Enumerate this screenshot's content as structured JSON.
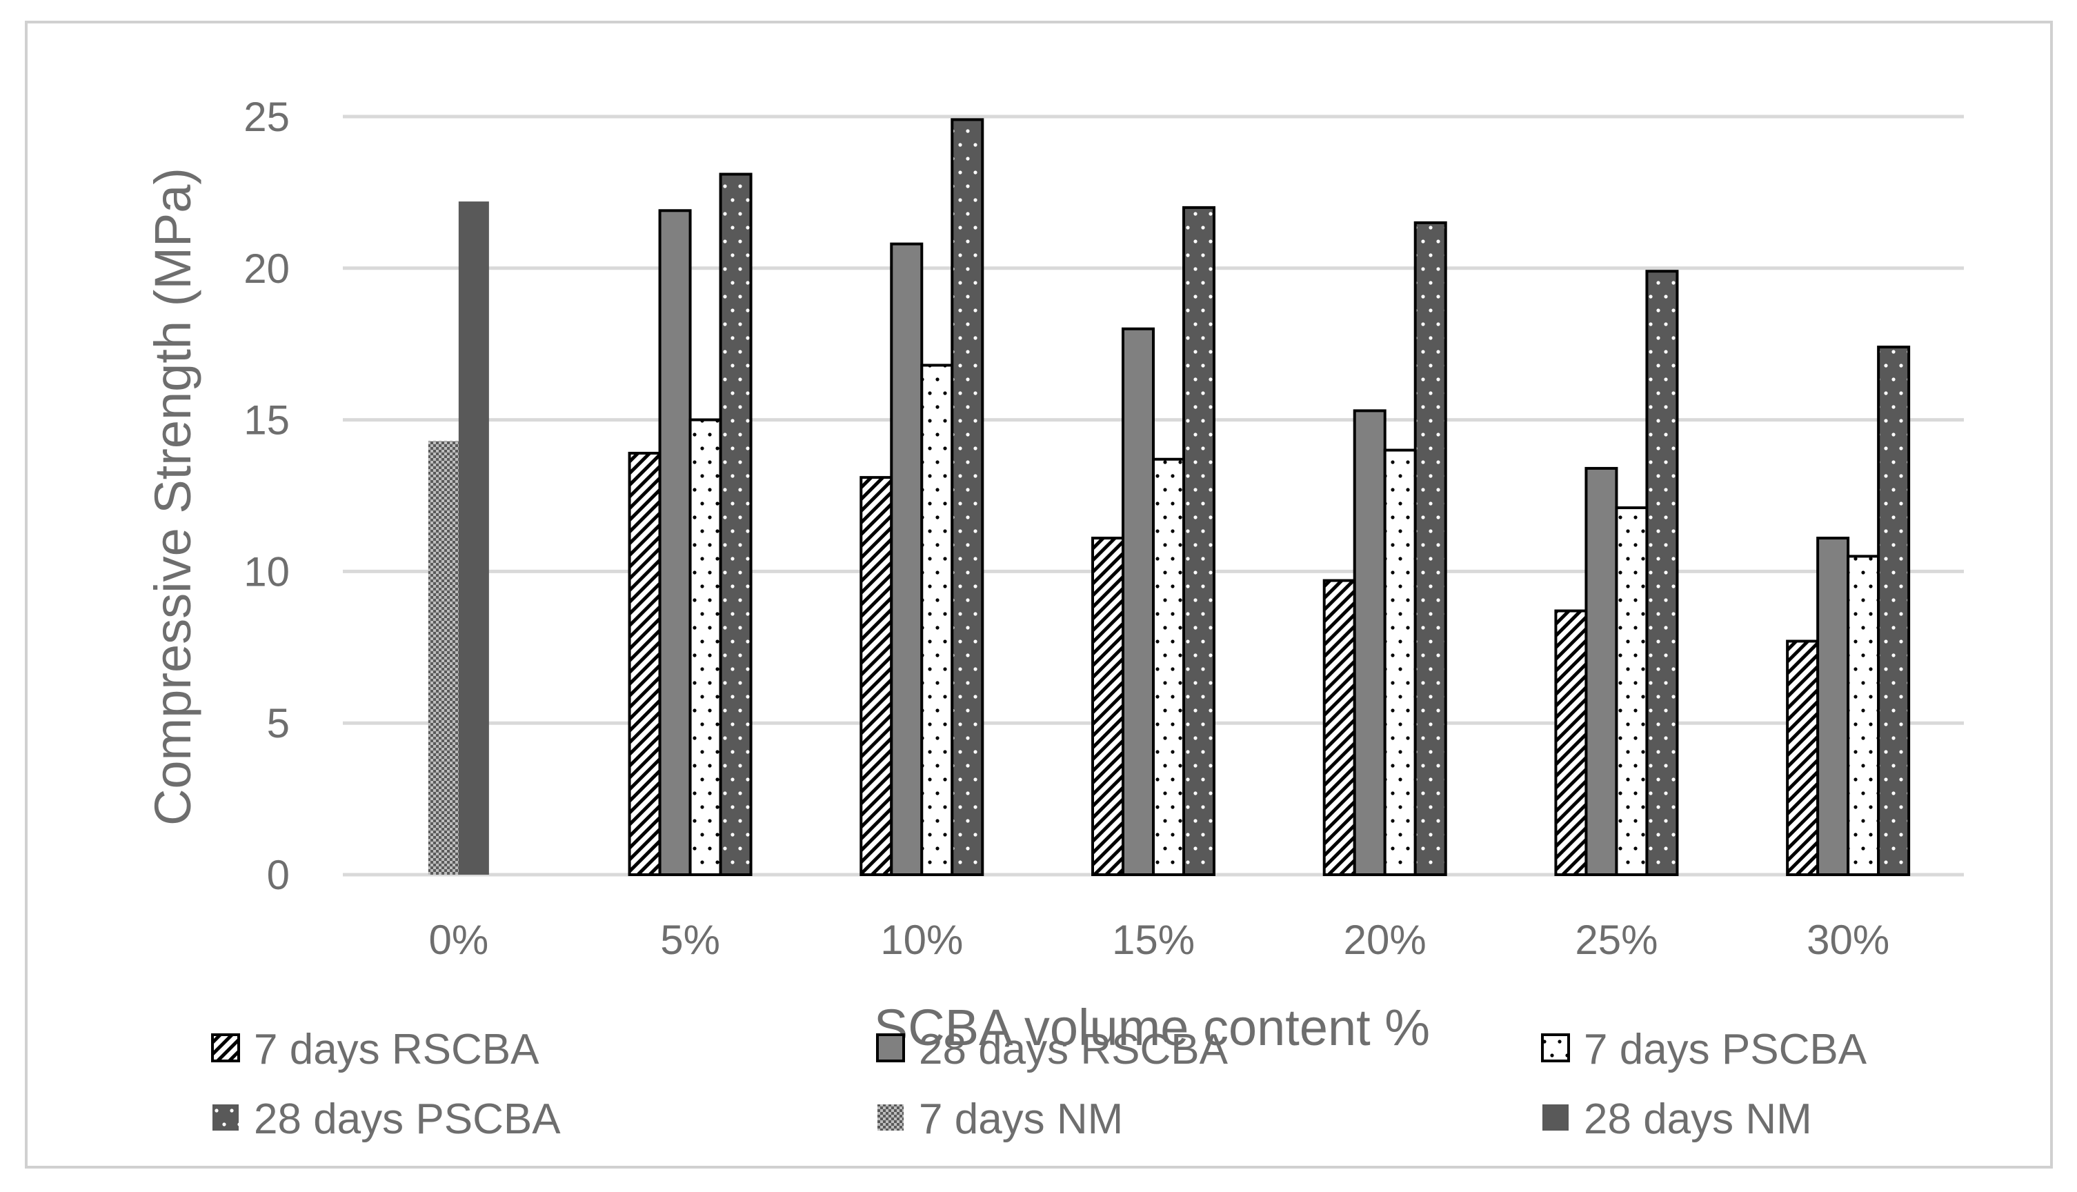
{
  "chart_data": {
    "type": "bar",
    "title": "",
    "xlabel": "SCBA volume content %",
    "ylabel": "Compressive Strength (MPa)",
    "ylim": [
      0,
      25
    ],
    "yticks": [
      "0",
      "5",
      "10",
      "15",
      "20",
      "25"
    ],
    "grid": true,
    "legend_position": "bottom",
    "categories": [
      "0%",
      "5%",
      "10%",
      "15%",
      "20%",
      "25%",
      "30%"
    ],
    "series": [
      {
        "name": "7 days RSCBA",
        "fill": "hatch",
        "values": [
          null,
          13.9,
          13.1,
          11.1,
          9.7,
          8.7,
          7.7
        ]
      },
      {
        "name": "28 days RSCBA",
        "fill": "#808080",
        "values": [
          null,
          21.9,
          20.8,
          18.0,
          15.3,
          13.4,
          11.1
        ]
      },
      {
        "name": "7 days PSCBA",
        "fill": "dots-white",
        "values": [
          null,
          15.0,
          16.8,
          13.7,
          14.0,
          12.1,
          10.5
        ]
      },
      {
        "name": "28 days PSCBA",
        "fill": "dots-dark",
        "values": [
          null,
          23.1,
          24.9,
          22.0,
          21.5,
          19.9,
          17.4
        ]
      },
      {
        "name": "7 days NM",
        "fill": "checker",
        "values": [
          14.3,
          null,
          null,
          null,
          null,
          null,
          null
        ]
      },
      {
        "name": "28 days NM",
        "fill": "#595959",
        "values": [
          22.2,
          null,
          null,
          null,
          null,
          null,
          null
        ]
      }
    ]
  }
}
